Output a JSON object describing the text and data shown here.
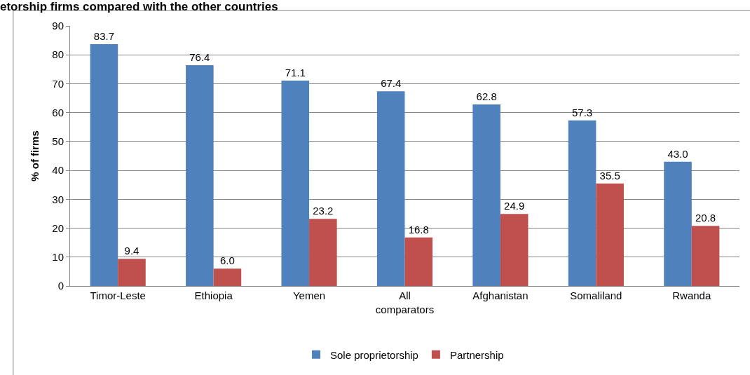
{
  "chart_data": {
    "type": "bar",
    "title": "etorship firms compared with the other countries",
    "ylabel": "% of firms",
    "categories": [
      "Timor-Leste",
      "Ethiopia",
      "Yemen",
      "All comparators",
      "Afghanistan",
      "Somaliland",
      "Rwanda"
    ],
    "series": [
      {
        "name": "Sole proprietorship",
        "color": "#4f81bd",
        "values": [
          83.7,
          76.4,
          71.1,
          67.4,
          62.8,
          57.3,
          43.0
        ],
        "value_labels": [
          "83.7",
          "76.4",
          "71.1",
          "67.4",
          "62.8",
          "57.3",
          "43.0"
        ]
      },
      {
        "name": "Partnership",
        "color": "#c0504d",
        "values": [
          9.4,
          6.0,
          23.2,
          16.8,
          24.9,
          35.5,
          20.8
        ],
        "value_labels": [
          "9.4",
          "6.0",
          "23.2",
          "16.8",
          "24.9",
          "35.5",
          "20.8"
        ]
      }
    ],
    "ylim": [
      0,
      90
    ],
    "yticks": [
      0,
      10,
      20,
      30,
      40,
      50,
      60,
      70,
      80,
      90
    ],
    "grid": "y",
    "legend": "bottom"
  }
}
